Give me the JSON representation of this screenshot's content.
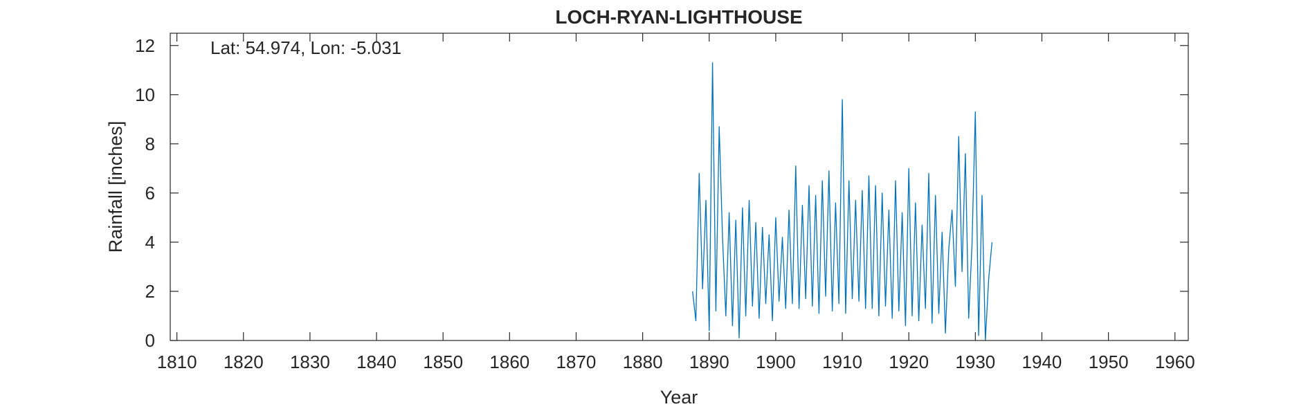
{
  "chart_data": {
    "type": "line",
    "title": "LOCH-RYAN-LIGHTHOUSE",
    "xlabel": "Year",
    "ylabel": "Rainfall [inches]",
    "annotation": "Lat: 54.974, Lon: -5.031",
    "xlim": [
      1809,
      1962
    ],
    "ylim": [
      0,
      12.5
    ],
    "xticks": [
      1810,
      1820,
      1830,
      1840,
      1850,
      1860,
      1870,
      1880,
      1890,
      1900,
      1910,
      1920,
      1930,
      1940,
      1950,
      1960
    ],
    "yticks": [
      0,
      2,
      4,
      6,
      8,
      10,
      12
    ],
    "grid": false,
    "line_color": "#0072BD",
    "series": [
      {
        "x": [
          1887.5,
          1888.0,
          1888.5,
          1889.0,
          1889.5,
          1890.0,
          1890.5,
          1891.0,
          1891.5,
          1892.0,
          1892.5,
          1893.0,
          1893.5,
          1894.0,
          1894.5,
          1895.0,
          1895.5,
          1896.0,
          1896.5,
          1897.0,
          1897.5,
          1898.0,
          1898.5,
          1899.0,
          1899.5,
          1900.0,
          1900.5,
          1901.0,
          1901.5,
          1902.0,
          1902.5,
          1903.0,
          1903.5,
          1904.0,
          1904.5,
          1905.0,
          1905.5,
          1906.0,
          1906.5,
          1907.0,
          1907.5,
          1908.0,
          1908.5,
          1909.0,
          1909.5,
          1910.0,
          1910.5,
          1911.0,
          1911.5,
          1912.0,
          1912.5,
          1913.0,
          1913.5,
          1914.0,
          1914.5,
          1915.0,
          1915.5,
          1916.0,
          1916.5,
          1917.0,
          1917.5,
          1918.0,
          1918.5,
          1919.0,
          1919.5,
          1920.0,
          1920.5,
          1921.0,
          1921.5,
          1922.0,
          1922.5,
          1923.0,
          1923.5,
          1924.0,
          1924.5,
          1925.0,
          1925.5,
          1926.0,
          1926.5,
          1927.0,
          1927.5,
          1928.0,
          1928.5,
          1929.0,
          1929.5,
          1930.0,
          1930.5,
          1931.0,
          1931.5,
          1932.0,
          1932.5
        ],
        "y": [
          2.0,
          0.8,
          6.8,
          2.1,
          5.7,
          0.4,
          11.3,
          1.2,
          8.7,
          4.2,
          1.0,
          5.2,
          0.6,
          4.9,
          0.1,
          5.4,
          1.0,
          5.7,
          1.4,
          4.8,
          0.9,
          4.6,
          1.5,
          4.3,
          0.8,
          5.0,
          1.6,
          4.2,
          1.3,
          5.3,
          1.5,
          7.1,
          1.3,
          5.5,
          1.7,
          6.3,
          1.4,
          5.9,
          1.1,
          6.5,
          1.8,
          6.9,
          1.2,
          5.6,
          1.5,
          9.8,
          1.1,
          6.5,
          1.7,
          5.7,
          1.6,
          6.1,
          1.3,
          6.7,
          1.3,
          6.3,
          1.0,
          6.0,
          1.4,
          5.3,
          0.9,
          6.5,
          1.2,
          5.2,
          0.6,
          7.0,
          1.0,
          5.6,
          0.8,
          4.7,
          1.3,
          6.8,
          0.7,
          5.9,
          1.1,
          4.4,
          0.3,
          3.7,
          5.3,
          2.2,
          8.3,
          2.8,
          7.6,
          0.9,
          3.9,
          9.3,
          0.2,
          5.9,
          0.0,
          2.5,
          4.0
        ]
      }
    ]
  }
}
